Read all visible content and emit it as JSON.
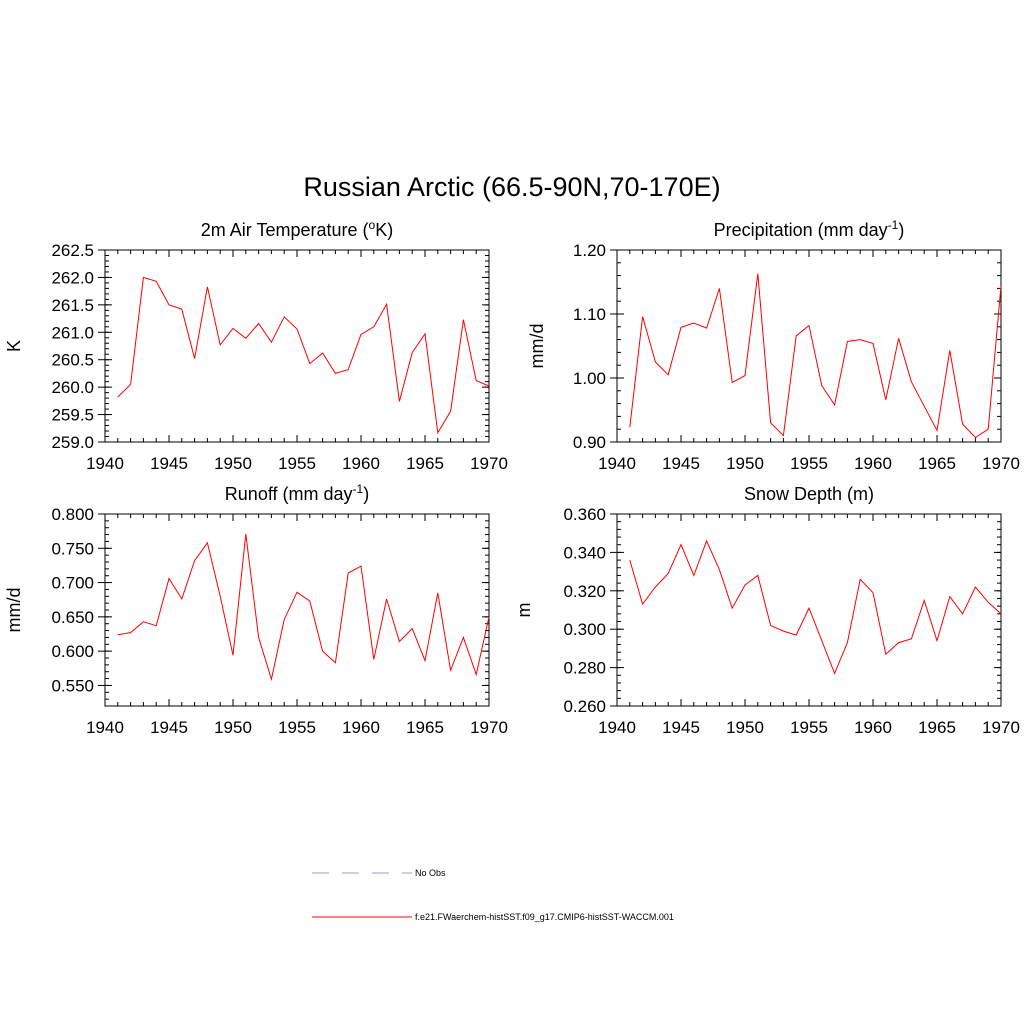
{
  "figure": {
    "title": "Russian Arctic (66.5-90N,70-170E)"
  },
  "legend": {
    "entries": [
      {
        "label": "No Obs",
        "color": "#9999dd",
        "style": "dashed"
      },
      {
        "label": "f.e21.FWaerchem-histSST.f09_g17.CMIP6-histSST-WACCM.001",
        "color": "#ff0000",
        "style": "solid"
      }
    ]
  },
  "chart_data": [
    {
      "type": "line",
      "title": "2m Air Temperature",
      "title_parts": [
        "2m Air Temperature (",
        "o",
        "K)"
      ],
      "xlabel": "",
      "ylabel": "K",
      "xlim": [
        1940,
        1970
      ],
      "ylim": [
        259.0,
        262.5
      ],
      "xticks": [
        1940,
        1945,
        1950,
        1955,
        1960,
        1965,
        1970
      ],
      "yticks": [
        "259.0",
        "259.5",
        "260.0",
        "260.5",
        "261.0",
        "261.5",
        "262.0",
        "262.5"
      ],
      "y_minor_step": 0.1,
      "x": [
        1941,
        1942,
        1943,
        1944,
        1945,
        1946,
        1947,
        1948,
        1949,
        1950,
        1951,
        1952,
        1953,
        1954,
        1955,
        1956,
        1957,
        1958,
        1959,
        1960,
        1961,
        1962,
        1963,
        1964,
        1965,
        1966,
        1967,
        1968,
        1969,
        1970
      ],
      "series": [
        {
          "name": "f.e21.FWaerchem-histSST.f09_g17.CMIP6-histSST-WACCM.001",
          "color": "#ff0000",
          "values": [
            259.82,
            260.05,
            262.0,
            261.93,
            261.5,
            261.42,
            260.52,
            261.83,
            260.77,
            261.07,
            260.89,
            261.16,
            260.82,
            261.28,
            261.06,
            260.43,
            260.62,
            260.25,
            260.32,
            260.96,
            261.1,
            261.51,
            259.74,
            260.63,
            260.97,
            259.17,
            259.56,
            261.23,
            260.12,
            260.02
          ]
        }
      ]
    },
    {
      "type": "line",
      "title": "Precipitation",
      "title_parts": [
        "Precipitation (mm day",
        "-1",
        ")"
      ],
      "xlabel": "",
      "ylabel": "mm/d",
      "xlim": [
        1940,
        1970
      ],
      "ylim": [
        0.9,
        1.2
      ],
      "xticks": [
        1940,
        1945,
        1950,
        1955,
        1960,
        1965,
        1970
      ],
      "yticks": [
        "0.90",
        "1.00",
        "1.10",
        "1.20"
      ],
      "y_minor_step": 0.02,
      "x": [
        1941,
        1942,
        1943,
        1944,
        1945,
        1946,
        1947,
        1948,
        1949,
        1950,
        1951,
        1952,
        1953,
        1954,
        1955,
        1956,
        1957,
        1958,
        1959,
        1960,
        1961,
        1962,
        1963,
        1964,
        1965,
        1966,
        1967,
        1968,
        1969,
        1970
      ],
      "series": [
        {
          "name": "f.e21.FWaerchem-histSST.f09_g17.CMIP6-histSST-WACCM.001",
          "color": "#ff0000",
          "values": [
            0.923,
            1.096,
            1.025,
            1.005,
            1.079,
            1.086,
            1.078,
            1.14,
            0.993,
            1.004,
            1.163,
            0.93,
            0.91,
            1.066,
            1.082,
            0.988,
            0.958,
            1.057,
            1.06,
            1.054,
            0.966,
            1.062,
            0.994,
            0.956,
            0.918,
            1.043,
            0.928,
            0.907,
            0.92,
            1.144
          ]
        }
      ]
    },
    {
      "type": "line",
      "title": "Runoff",
      "title_parts": [
        "Runoff (mm day",
        "-1",
        ")"
      ],
      "xlabel": "",
      "ylabel": "mm/d",
      "xlim": [
        1940,
        1970
      ],
      "ylim": [
        0.52,
        0.8
      ],
      "xticks": [
        1940,
        1945,
        1950,
        1955,
        1960,
        1965,
        1970
      ],
      "yticks": [
        "0.550",
        "0.600",
        "0.650",
        "0.700",
        "0.750",
        "0.800"
      ],
      "y_minor_step": 0.01,
      "x": [
        1941,
        1942,
        1943,
        1944,
        1945,
        1946,
        1947,
        1948,
        1949,
        1950,
        1951,
        1952,
        1953,
        1954,
        1955,
        1956,
        1957,
        1958,
        1959,
        1960,
        1961,
        1962,
        1963,
        1964,
        1965,
        1966,
        1967,
        1968,
        1969,
        1970
      ],
      "series": [
        {
          "name": "f.e21.FWaerchem-histSST.f09_g17.CMIP6-histSST-WACCM.001",
          "color": "#ff0000",
          "values": [
            0.624,
            0.627,
            0.643,
            0.637,
            0.706,
            0.676,
            0.732,
            0.758,
            0.68,
            0.594,
            0.771,
            0.62,
            0.559,
            0.646,
            0.686,
            0.673,
            0.6,
            0.583,
            0.714,
            0.724,
            0.588,
            0.676,
            0.614,
            0.633,
            0.586,
            0.685,
            0.572,
            0.62,
            0.566,
            0.65
          ]
        }
      ]
    },
    {
      "type": "line",
      "title": "Snow Depth (m)",
      "title_parts": [
        "Snow Depth (m)",
        "",
        ""
      ],
      "xlabel": "",
      "ylabel": "m",
      "xlim": [
        1940,
        1970
      ],
      "ylim": [
        0.26,
        0.36
      ],
      "xticks": [
        1940,
        1945,
        1950,
        1955,
        1960,
        1965,
        1970
      ],
      "yticks": [
        "0.260",
        "0.280",
        "0.300",
        "0.320",
        "0.340",
        "0.360"
      ],
      "y_minor_step": 0.004,
      "x": [
        1941,
        1942,
        1943,
        1944,
        1945,
        1946,
        1947,
        1948,
        1949,
        1950,
        1951,
        1952,
        1953,
        1954,
        1955,
        1956,
        1957,
        1958,
        1959,
        1960,
        1961,
        1962,
        1963,
        1964,
        1965,
        1966,
        1967,
        1968,
        1969,
        1970
      ],
      "series": [
        {
          "name": "f.e21.FWaerchem-histSST.f09_g17.CMIP6-histSST-WACCM.001",
          "color": "#ff0000",
          "values": [
            0.336,
            0.313,
            0.322,
            0.329,
            0.344,
            0.328,
            0.346,
            0.331,
            0.311,
            0.323,
            0.328,
            0.302,
            0.299,
            0.297,
            0.311,
            0.294,
            0.277,
            0.293,
            0.326,
            0.319,
            0.287,
            0.293,
            0.295,
            0.315,
            0.294,
            0.317,
            0.308,
            0.322,
            0.314,
            0.308
          ]
        }
      ]
    }
  ]
}
